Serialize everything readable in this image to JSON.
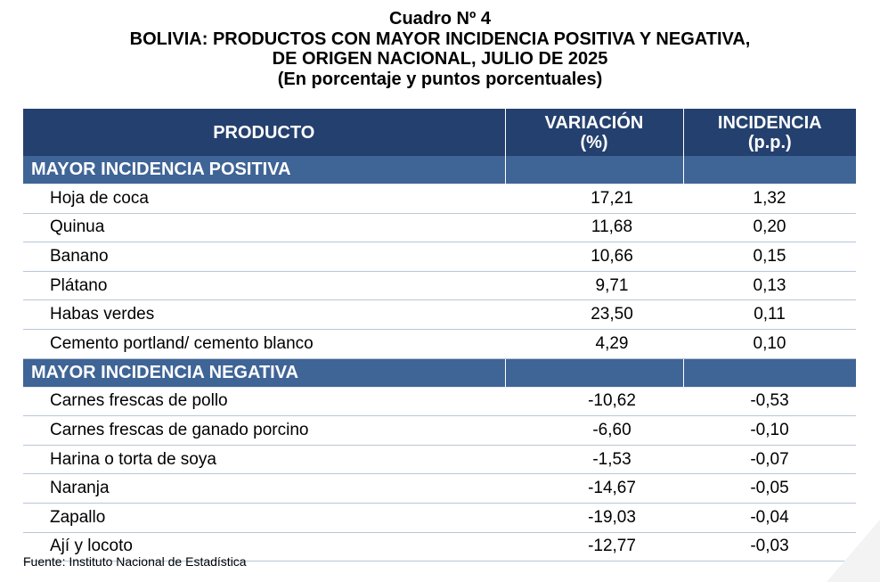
{
  "title": {
    "line1": "Cuadro Nº 4",
    "line2": "BOLIVIA: PRODUCTOS CON MAYOR INCIDENCIA POSITIVA Y NEGATIVA,",
    "line3": "DE ORIGEN NACIONAL, JULIO DE 2025",
    "line4": "(En porcentaje y puntos porcentuales)"
  },
  "header": {
    "producto": "PRODUCTO",
    "variacion_line1": "VARIACIÓN",
    "variacion_line2": "(%)",
    "incidencia_line1": "INCIDENCIA",
    "incidencia_line2": "(p.p.)"
  },
  "positive": {
    "label": "MAYOR INCIDENCIA POSITIVA",
    "rows": [
      {
        "producto": "Hoja de coca",
        "variacion": "17,21",
        "incidencia": "1,32"
      },
      {
        "producto": "Quinua",
        "variacion": "11,68",
        "incidencia": "0,20"
      },
      {
        "producto": "Banano",
        "variacion": "10,66",
        "incidencia": "0,15"
      },
      {
        "producto": "Plátano",
        "variacion": "9,71",
        "incidencia": "0,13"
      },
      {
        "producto": "Habas verdes",
        "variacion": "23,50",
        "incidencia": "0,11"
      },
      {
        "producto": "Cemento portland/ cemento blanco",
        "variacion": "4,29",
        "incidencia": "0,10"
      }
    ]
  },
  "negative": {
    "label": "MAYOR INCIDENCIA NEGATIVA",
    "rows": [
      {
        "producto": "Carnes frescas de pollo",
        "variacion": "-10,62",
        "incidencia": "-0,53"
      },
      {
        "producto": "Carnes frescas de ganado porcino",
        "variacion": "-6,60",
        "incidencia": "-0,10"
      },
      {
        "producto": "Harina o torta de soya",
        "variacion": "-1,53",
        "incidencia": "-0,07"
      },
      {
        "producto": "Naranja",
        "variacion": "-14,67",
        "incidencia": "-0,05"
      },
      {
        "producto": "Zapallo",
        "variacion": "-19,03",
        "incidencia": "-0,04"
      },
      {
        "producto": "Ají y locoto",
        "variacion": "-12,77",
        "incidencia": "-0,03"
      }
    ]
  },
  "source": "Fuente: Instituto Nacional de Estadística",
  "colors": {
    "header_bg": "#24406e",
    "section_bg": "#3f6496",
    "text": "#000000"
  }
}
